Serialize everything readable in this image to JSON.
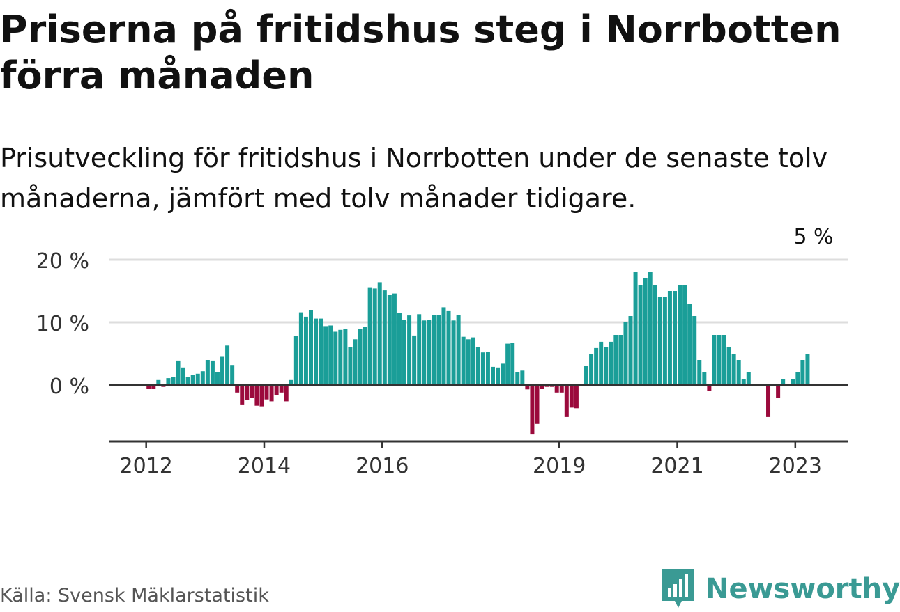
{
  "title": "Priserna på fritidshus steg i Norrbotten förra månaden",
  "subtitle": "Prisutveckling för fritidshus i Norrbotten under de senaste tolv månaderna, jämfört med tolv månader tidigare.",
  "source": "Källa: Svensk Mäklarstatistik",
  "brand": "Newsworthy",
  "colors": {
    "positive": "#1a9e98",
    "negative": "#9b0a3c",
    "brand": "#3a9a94"
  },
  "chart_data": {
    "type": "bar",
    "x_start": "2011-09",
    "x_end": "2023-04",
    "ylim": [
      -9,
      20
    ],
    "y_ticks": [
      {
        "value": 0,
        "label": "0 %"
      },
      {
        "value": 10,
        "label": "10 %"
      },
      {
        "value": 20,
        "label": "20 %"
      }
    ],
    "x_ticks": [
      {
        "date": "2012-01",
        "label": "2012"
      },
      {
        "date": "2014-01",
        "label": "2014"
      },
      {
        "date": "2016-01",
        "label": "2016"
      },
      {
        "date": "2019-01",
        "label": "2019"
      },
      {
        "date": "2021-01",
        "label": "2021"
      },
      {
        "date": "2023-01",
        "label": "2023"
      }
    ],
    "annotation": {
      "date": "2023-04",
      "label": "5 %"
    },
    "grid": true,
    "values": [
      null,
      null,
      null,
      null,
      -0.6,
      -0.6,
      0.8,
      -0.3,
      1.1,
      1.3,
      3.9,
      2.8,
      1.3,
      1.6,
      1.8,
      2.2,
      4.0,
      3.9,
      2.1,
      4.5,
      6.3,
      3.2,
      -1.2,
      -3.1,
      -2.4,
      -2.1,
      -3.3,
      -3.4,
      -2.3,
      -2.6,
      -1.6,
      -1.2,
      -2.6,
      0.8,
      7.8,
      11.6,
      10.9,
      12.0,
      10.6,
      10.6,
      9.4,
      9.5,
      8.5,
      8.8,
      8.9,
      6.1,
      7.3,
      8.9,
      9.3,
      15.6,
      15.4,
      16.4,
      15.1,
      14.4,
      14.6,
      11.5,
      10.4,
      11.1,
      7.9,
      11.3,
      10.3,
      10.4,
      11.2,
      11.2,
      12.4,
      11.9,
      10.3,
      11.2,
      7.7,
      7.3,
      7.6,
      6.1,
      5.2,
      5.3,
      2.9,
      2.8,
      3.4,
      6.6,
      6.7,
      2.0,
      2.3,
      -0.7,
      -7.9,
      -6.2,
      -0.6,
      -0.3,
      -0.3,
      -1.2,
      -1.2,
      -5.1,
      -3.6,
      -3.7,
      null,
      3.0,
      4.9,
      5.9,
      6.9,
      6.0,
      6.9,
      8.0,
      8.0,
      10.0,
      11.0,
      18.0,
      16.0,
      17.0,
      18.0,
      16.0,
      14.0,
      14.0,
      15.0,
      15.0,
      16.0,
      16.0,
      13.0,
      11.0,
      4.0,
      2.0,
      -1.0,
      8.0,
      8.0,
      8.0,
      6.0,
      5.0,
      4.0,
      1.0,
      2.0,
      null,
      null,
      null,
      -5.1,
      null,
      -2.0,
      1.0,
      null,
      1.0,
      2.0,
      4.0,
      5.0
    ]
  }
}
